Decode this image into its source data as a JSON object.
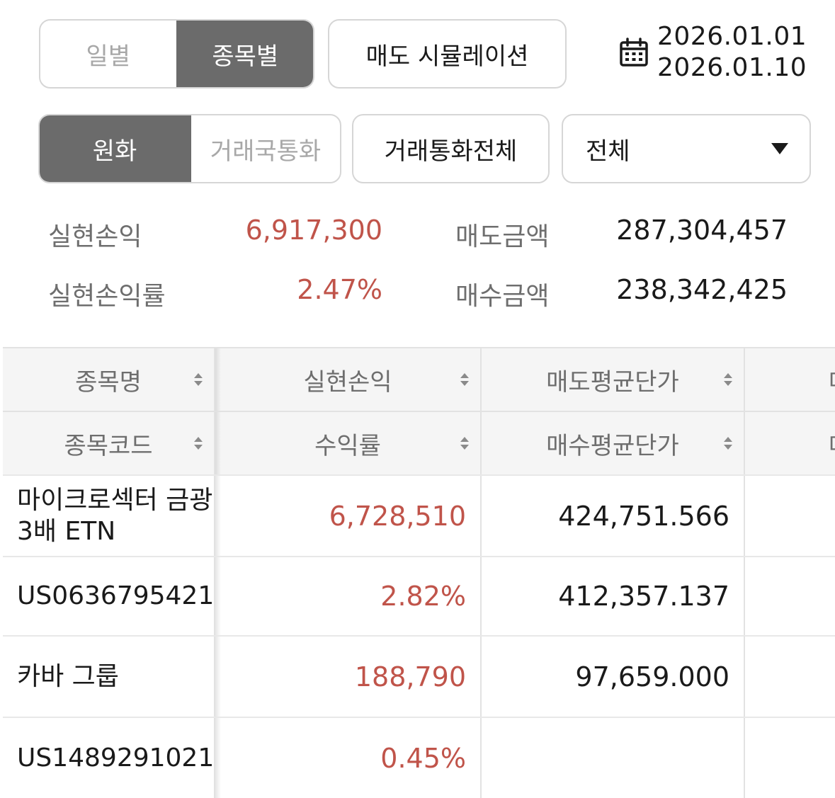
{
  "view_toggle": {
    "options": [
      "일별",
      "종목별"
    ],
    "active_index": 1
  },
  "simulation_button": "매도 시뮬레이션",
  "date_range": {
    "start": "2026.01.01",
    "end": "2026.01.10",
    "icon": "calendar-icon"
  },
  "currency_toggle": {
    "options": [
      "원화",
      "거래국통화"
    ],
    "active_index": 0
  },
  "currency_filter_button": "거래통화전체",
  "market_select": {
    "value": "전체",
    "icon": "triangle-down-icon"
  },
  "summary": {
    "realized_pl_label": "실현손익",
    "realized_pl_value": "6,917,300",
    "realized_rate_label": "실현손익률",
    "realized_rate_value": "2.47%",
    "sell_amount_label": "매도금액",
    "sell_amount_value": "287,304,457",
    "buy_amount_label": "매수금액",
    "buy_amount_value": "238,342,425"
  },
  "table": {
    "header_row1": [
      "종목명",
      "실현손익",
      "매도평균단가",
      "매"
    ],
    "header_row2": [
      "종목코드",
      "수익률",
      "매수평균단가",
      "매"
    ],
    "rows": [
      {
        "name": "마이크로섹터 금광 3배 ETN",
        "code": "US0636795421",
        "pl": "6,728,510",
        "rate": "2.82%",
        "sell_avg": "424,751.566",
        "buy_avg": "412,357.137"
      },
      {
        "name": "카바 그룹",
        "code": "US1489291021",
        "pl": "188,790",
        "rate": "0.45%",
        "sell_avg": "97,659.000",
        "buy_avg": ""
      }
    ]
  },
  "colors": {
    "positive": "#c0544a",
    "active_segment": "#6b6b6b"
  }
}
